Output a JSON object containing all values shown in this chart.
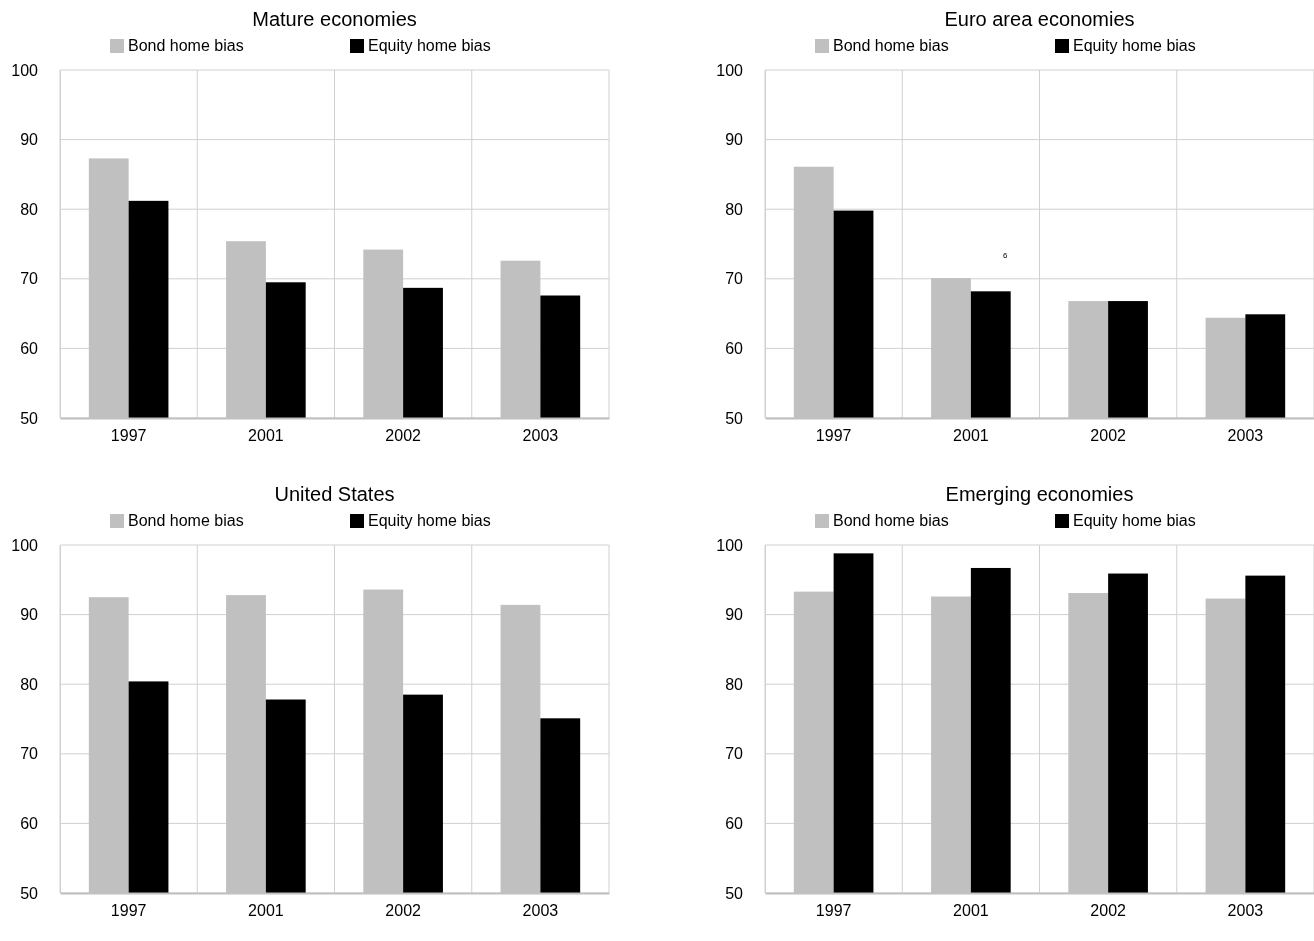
{
  "chart_data": [
    {
      "type": "bar",
      "title": "Mature economies",
      "categories": [
        "1997",
        "2001",
        "2002",
        "2003"
      ],
      "series": [
        {
          "name": "Bond home bias",
          "color": "#c0c0c0",
          "values": [
            87.3,
            75.4,
            74.2,
            72.6
          ]
        },
        {
          "name": "Equity home bias",
          "color": "#000000",
          "values": [
            81.2,
            69.5,
            68.7,
            67.6
          ]
        }
      ],
      "ylim": [
        50,
        100
      ],
      "yticks": [
        50,
        60,
        70,
        80,
        90,
        100
      ],
      "grid": true,
      "legend": "top"
    },
    {
      "type": "bar",
      "title": "Euro area economies",
      "categories": [
        "1997",
        "2001",
        "2002",
        "2003"
      ],
      "series": [
        {
          "name": "Bond home bias",
          "color": "#c0c0c0",
          "values": [
            86.1,
            70.1,
            66.8,
            64.4
          ]
        },
        {
          "name": "Equity home bias",
          "color": "#000000",
          "values": [
            79.8,
            68.2,
            66.8,
            64.9
          ]
        }
      ],
      "ylim": [
        50,
        100
      ],
      "yticks": [
        50,
        60,
        70,
        80,
        90,
        100
      ],
      "grid": true,
      "legend": "top",
      "annotations": [
        "6"
      ]
    },
    {
      "type": "bar",
      "title": "United States",
      "categories": [
        "1997",
        "2001",
        "2002",
        "2003"
      ],
      "series": [
        {
          "name": "Bond home bias",
          "color": "#c0c0c0",
          "values": [
            92.5,
            92.8,
            93.6,
            91.4
          ]
        },
        {
          "name": "Equity home bias",
          "color": "#000000",
          "values": [
            80.4,
            77.8,
            78.5,
            75.1
          ]
        }
      ],
      "ylim": [
        50,
        100
      ],
      "yticks": [
        50,
        60,
        70,
        80,
        90,
        100
      ],
      "grid": true,
      "legend": "top"
    },
    {
      "type": "bar",
      "title": "Emerging economies",
      "categories": [
        "1997",
        "2001",
        "2002",
        "2003"
      ],
      "series": [
        {
          "name": "Bond home bias",
          "color": "#c0c0c0",
          "values": [
            93.3,
            92.6,
            93.1,
            92.3
          ]
        },
        {
          "name": "Equity home bias",
          "color": "#000000",
          "values": [
            98.8,
            96.7,
            95.9,
            95.6
          ]
        }
      ],
      "ylim": [
        50,
        100
      ],
      "yticks": [
        50,
        60,
        70,
        80,
        90,
        100
      ],
      "grid": true,
      "legend": "top"
    }
  ]
}
